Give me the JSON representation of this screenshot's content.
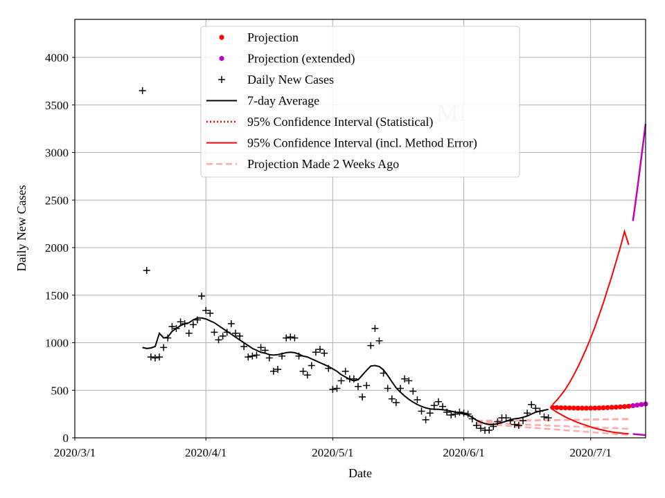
{
  "chart_data": {
    "type": "line",
    "title": "",
    "watermark": "MI",
    "xlabel": "Date",
    "ylabel": "Daily New Cases",
    "ylim": [
      0,
      4400
    ],
    "xlim": [
      0,
      135
    ],
    "yticks": [
      0,
      500,
      1000,
      1500,
      2000,
      2500,
      3000,
      3500,
      4000
    ],
    "xticks": [
      {
        "label": "2020/3/1",
        "day": 0
      },
      {
        "label": "2020/4/1",
        "day": 31
      },
      {
        "label": "2020/5/1",
        "day": 61
      },
      {
        "label": "2020/6/1",
        "day": 92
      },
      {
        "label": "2020/7/1",
        "day": 122
      }
    ],
    "grid": true,
    "legend_position": "top-center",
    "legend": [
      {
        "key": "projection",
        "label": "Projection",
        "style": "dot",
        "color": "#ff0000"
      },
      {
        "key": "projection_ext",
        "label": "Projection (extended)",
        "style": "dot",
        "color": "#bf00bf"
      },
      {
        "key": "daily",
        "label": "Daily New Cases",
        "style": "plus",
        "color": "#000000"
      },
      {
        "key": "avg",
        "label": "7-day Average",
        "style": "line",
        "color": "#000000"
      },
      {
        "key": "ci_stat",
        "label": "95% Confidence Interval (Statistical)",
        "style": "dotted",
        "color": "#ff0000"
      },
      {
        "key": "ci_method",
        "label": "95% Confidence Interval (incl. Method Error)",
        "style": "line",
        "color": "#ff0000"
      },
      {
        "key": "proj_2wk",
        "label": "Projection Made 2 Weeks Ago",
        "style": "dashed",
        "color": "#ffaaaa"
      }
    ],
    "daily_new_cases": {
      "x": [
        16,
        17,
        18,
        19,
        20,
        21,
        22,
        23,
        24,
        25,
        26,
        27,
        28,
        29,
        30,
        31,
        32,
        33,
        34,
        35,
        36,
        37,
        38,
        39,
        40,
        41,
        42,
        43,
        44,
        45,
        46,
        47,
        48,
        49,
        50,
        51,
        52,
        53,
        54,
        55,
        56,
        57,
        58,
        59,
        60,
        61,
        62,
        63,
        64,
        65,
        66,
        67,
        68,
        69,
        70,
        71,
        72,
        73,
        74,
        75,
        76,
        77,
        78,
        79,
        80,
        81,
        82,
        83,
        84,
        85,
        86,
        87,
        88,
        89,
        90,
        91,
        92,
        93,
        94,
        95,
        96,
        97,
        98,
        99,
        100,
        101,
        102,
        103,
        104,
        105,
        106,
        107,
        108,
        109,
        110,
        111,
        112
      ],
      "y": [
        3650,
        1760,
        850,
        840,
        850,
        950,
        1050,
        1170,
        1150,
        1220,
        1200,
        1100,
        1190,
        1240,
        1490,
        1340,
        1310,
        1110,
        1030,
        1070,
        1110,
        1200,
        1100,
        1070,
        960,
        850,
        860,
        870,
        950,
        920,
        840,
        700,
        720,
        860,
        1050,
        1060,
        1050,
        860,
        700,
        660,
        760,
        900,
        930,
        890,
        730,
        510,
        520,
        600,
        700,
        620,
        620,
        540,
        430,
        550,
        970,
        1150,
        1020,
        680,
        520,
        410,
        370,
        520,
        620,
        600,
        490,
        400,
        280,
        190,
        260,
        340,
        380,
        330,
        270,
        240,
        250,
        270,
        260,
        250,
        200,
        130,
        100,
        80,
        80,
        120,
        170,
        210,
        210,
        180,
        140,
        130,
        180,
        260,
        350,
        310,
        280,
        220,
        210
      ]
    },
    "seven_day_average": {
      "x": [
        16,
        17,
        18,
        19,
        20,
        21,
        22,
        23,
        24,
        25,
        26,
        27,
        28,
        29,
        30,
        31,
        32,
        33,
        34,
        35,
        36,
        37,
        38,
        39,
        40,
        41,
        42,
        43,
        44,
        45,
        46,
        47,
        48,
        49,
        50,
        51,
        52,
        53,
        54,
        55,
        56,
        57,
        58,
        59,
        60,
        61,
        62,
        63,
        64,
        65,
        66,
        67,
        68,
        69,
        70,
        71,
        72,
        73,
        74,
        75,
        76,
        77,
        78,
        79,
        80,
        81,
        82,
        83,
        84,
        85,
        86,
        87,
        88,
        89,
        90,
        91,
        92,
        93,
        94,
        95,
        96,
        97,
        98,
        99,
        100,
        101,
        102,
        103,
        104,
        105,
        106,
        107,
        108,
        109,
        110,
        111,
        112
      ],
      "y": [
        950,
        940,
        945,
        960,
        1100,
        1050,
        1060,
        1120,
        1150,
        1180,
        1200,
        1210,
        1240,
        1260,
        1260,
        1250,
        1230,
        1210,
        1180,
        1150,
        1120,
        1090,
        1060,
        1030,
        1000,
        970,
        940,
        920,
        900,
        890,
        875,
        870,
        875,
        885,
        895,
        900,
        895,
        880,
        860,
        850,
        830,
        810,
        790,
        770,
        750,
        725,
        700,
        665,
        640,
        615,
        600,
        610,
        660,
        710,
        755,
        760,
        750,
        715,
        655,
        590,
        525,
        480,
        440,
        405,
        375,
        350,
        330,
        315,
        305,
        300,
        300,
        295,
        290,
        280,
        270,
        260,
        250,
        240,
        215,
        185,
        165,
        150,
        140,
        140,
        150,
        160,
        175,
        190,
        200,
        205,
        215,
        230,
        250,
        270,
        280,
        290,
        300
      ]
    },
    "projection": {
      "x": [
        113,
        114,
        115,
        116,
        117,
        118,
        119,
        120,
        121,
        122,
        123,
        124,
        125,
        126,
        127,
        128,
        129,
        130,
        131
      ],
      "y": [
        320,
        318,
        316,
        315,
        314,
        313,
        312,
        312,
        312,
        312,
        313,
        314,
        316,
        318,
        320,
        322,
        325,
        328,
        332
      ]
    },
    "projection_extended": {
      "x": [
        132,
        133,
        134,
        135
      ],
      "y": [
        338,
        344,
        350,
        356
      ]
    },
    "ci_method_upper": {
      "x": [
        113,
        114,
        115,
        116,
        117,
        118,
        119,
        120,
        121,
        122,
        123,
        124,
        125,
        126,
        127,
        128,
        129,
        130,
        131
      ],
      "y": [
        350,
        395,
        450,
        510,
        580,
        660,
        745,
        840,
        940,
        1050,
        1165,
        1290,
        1420,
        1560,
        1700,
        1850,
        2000,
        2170,
        2030
      ]
    },
    "ci_method_upper_ext": {
      "x": [
        132,
        133,
        134,
        135
      ],
      "y": [
        2280,
        2600,
        2950,
        3300
      ]
    },
    "ci_method_lower": {
      "x": [
        113,
        114,
        115,
        116,
        117,
        118,
        119,
        120,
        121,
        122,
        123,
        124,
        125,
        126,
        127,
        128,
        129,
        130,
        131
      ],
      "y": [
        300,
        270,
        245,
        220,
        200,
        180,
        160,
        145,
        130,
        115,
        100,
        90,
        80,
        70,
        62,
        55,
        50,
        46,
        44
      ]
    },
    "ci_method_lower_ext": {
      "x": [
        132,
        133,
        134,
        135
      ],
      "y": [
        40,
        36,
        32,
        28
      ]
    },
    "projection_2_weeks_ago": {
      "central": {
        "x": [
          95,
          131
        ],
        "y": [
          170,
          200
        ]
      },
      "upper": {
        "x": [
          95,
          131
        ],
        "y": [
          180,
          195
        ]
      },
      "middle": {
        "x": [
          95,
          131
        ],
        "y": [
          160,
          95
        ]
      },
      "lower": {
        "x": [
          95,
          131
        ],
        "y": [
          150,
          30
        ]
      }
    }
  }
}
